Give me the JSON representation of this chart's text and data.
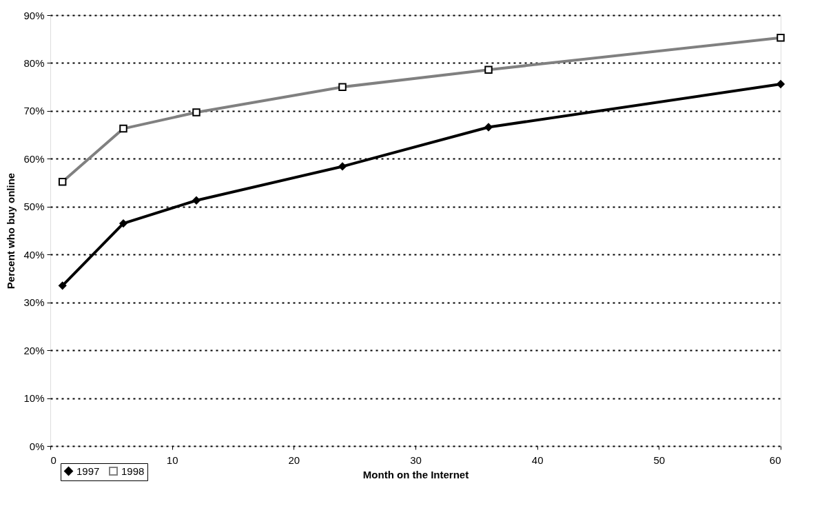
{
  "chart_data": {
    "type": "line",
    "xlabel": "Month on the Internet",
    "ylabel": "Percent who buy online",
    "x": [
      1,
      6,
      12,
      24,
      36,
      60
    ],
    "series": [
      {
        "name": "1997",
        "color": "#000000",
        "marker": "diamond",
        "values": [
          33.5,
          46.5,
          51.3,
          58.4,
          66.6,
          75.6
        ]
      },
      {
        "name": "1998",
        "color": "#808080",
        "marker": "square",
        "values": [
          55.2,
          66.3,
          69.7,
          75.0,
          78.6,
          85.3
        ]
      }
    ],
    "xlim": [
      0,
      60
    ],
    "xticks": [
      0,
      10,
      20,
      30,
      40,
      50,
      60
    ],
    "ylim": [
      0,
      90
    ],
    "yticks": [
      {
        "value": 0,
        "label": "0%"
      },
      {
        "value": 10,
        "label": "10%"
      },
      {
        "value": 20,
        "label": "20%"
      },
      {
        "value": 30,
        "label": "30%"
      },
      {
        "value": 40,
        "label": "40%"
      },
      {
        "value": 50,
        "label": "50%"
      },
      {
        "value": 60,
        "label": "60%"
      },
      {
        "value": 70,
        "label": "70%"
      },
      {
        "value": 80,
        "label": "80%"
      },
      {
        "value": 90,
        "label": "90%"
      }
    ],
    "grid": "y",
    "legend": "bottom left",
    "line_style": "solid"
  }
}
